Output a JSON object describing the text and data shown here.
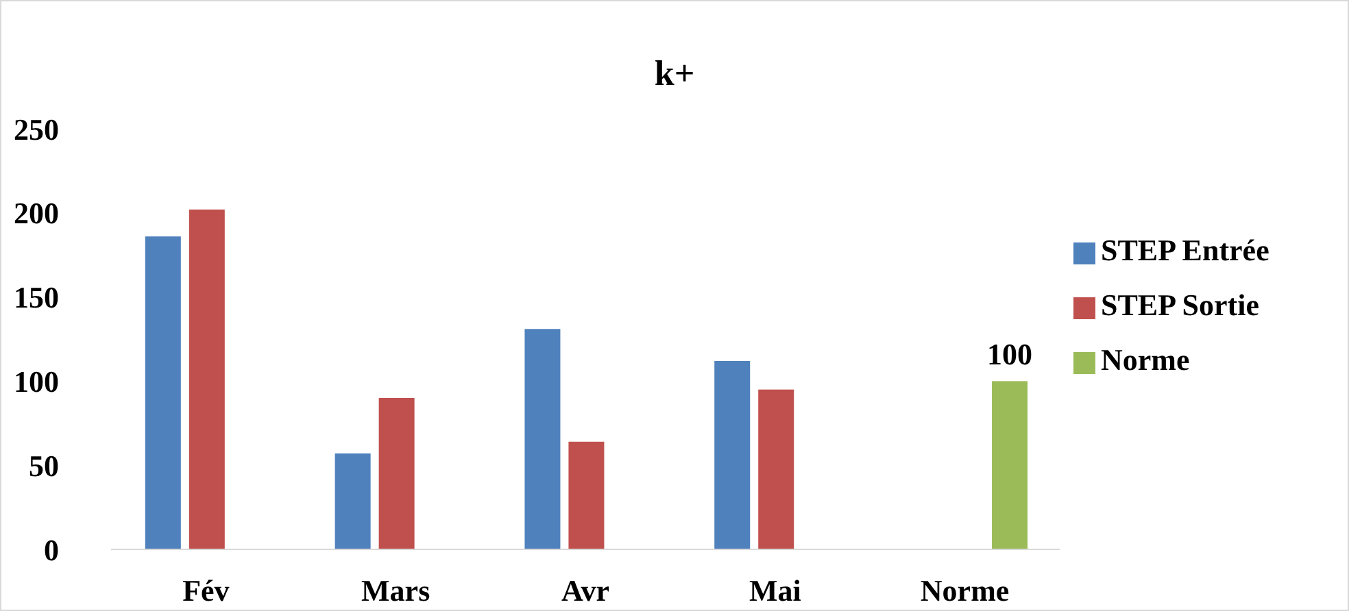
{
  "chart_data": {
    "type": "bar",
    "title": "k+",
    "categories": [
      "Fév",
      "Mars",
      "Avr",
      "Mai",
      "Norme"
    ],
    "series": [
      {
        "name": "STEP Entrée",
        "color": "#4f81bd",
        "values": [
          186,
          57,
          131,
          112,
          null
        ]
      },
      {
        "name": "STEP Sortie",
        "color": "#c0504d",
        "values": [
          202,
          90,
          64,
          95,
          null
        ]
      },
      {
        "name": "Norme",
        "color": "#9bbb59",
        "values": [
          null,
          null,
          null,
          null,
          100
        ],
        "value_labels": [
          null,
          null,
          null,
          null,
          "100"
        ]
      }
    ],
    "ylim": [
      0,
      250
    ],
    "yticks": [
      0,
      50,
      100,
      150,
      200,
      250
    ],
    "grid": false,
    "legend": "right"
  }
}
